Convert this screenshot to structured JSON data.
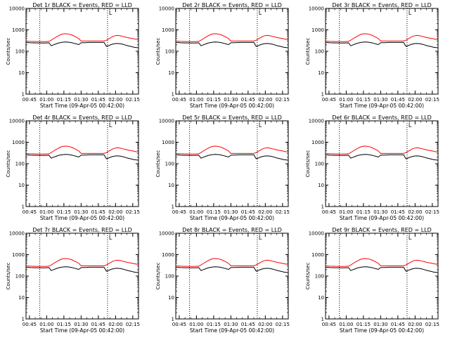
{
  "chart_data": [
    {
      "type": "line",
      "title": "Det 1r BLACK = Events, RED = LLD",
      "ylabel": "Counts/sec",
      "xlabel": "Start Time (09-Apr-05 00:42:00)",
      "x_ticks": [
        "00:45",
        "01:00",
        "01:15",
        "01:30",
        "01:45",
        "02:00",
        "02:15"
      ],
      "y_ticks": [
        "1",
        "10",
        "100",
        "1000",
        "10000"
      ],
      "yscale": "log",
      "ylim": [
        1,
        10000
      ],
      "xlim_minutes": [
        42,
        140
      ],
      "marker_label": "L",
      "series": [
        {
          "name": "Events",
          "color": "#000000"
        },
        {
          "name": "LLD",
          "color": "#ff0000"
        }
      ]
    },
    {
      "type": "line",
      "title": "Det 2r BLACK = Events, RED = LLD",
      "ylabel": "Counts/sec",
      "xlabel": "Start Time (09-Apr-05 00:42:00)",
      "x_ticks": [
        "00:45",
        "01:00",
        "01:15",
        "01:30",
        "01:45",
        "02:00",
        "02:15"
      ],
      "y_ticks": [
        "1",
        "10",
        "100",
        "1000",
        "10000"
      ],
      "yscale": "log",
      "ylim": [
        1,
        10000
      ],
      "xlim_minutes": [
        42,
        140
      ],
      "marker_label": "L",
      "series": [
        {
          "name": "Events",
          "color": "#000000"
        },
        {
          "name": "LLD",
          "color": "#ff0000"
        }
      ]
    },
    {
      "type": "line",
      "title": "Det 3r BLACK = Events, RED = LLD",
      "ylabel": "Counts/sec",
      "xlabel": "Start Time (09-Apr-05 00:42:00)",
      "x_ticks": [
        "00:45",
        "01:00",
        "01:15",
        "01:30",
        "01:45",
        "02:00",
        "02:15"
      ],
      "y_ticks": [
        "1",
        "10",
        "100",
        "1000",
        "10000"
      ],
      "yscale": "log",
      "ylim": [
        1,
        10000
      ],
      "xlim_minutes": [
        42,
        140
      ],
      "marker_label": "L",
      "series": [
        {
          "name": "Events",
          "color": "#000000"
        },
        {
          "name": "LLD",
          "color": "#ff0000"
        }
      ]
    },
    {
      "type": "line",
      "title": "Det 4r BLACK = Events, RED = LLD",
      "ylabel": "Counts/sec",
      "xlabel": "Start Time (09-Apr-05 00:42:00)",
      "x_ticks": [
        "00:45",
        "01:00",
        "01:15",
        "01:30",
        "01:45",
        "02:00",
        "02:15"
      ],
      "y_ticks": [
        "1",
        "10",
        "100",
        "1000",
        "10000"
      ],
      "yscale": "log",
      "ylim": [
        1,
        10000
      ],
      "xlim_minutes": [
        42,
        140
      ],
      "marker_label": "L",
      "series": [
        {
          "name": "Events",
          "color": "#000000"
        },
        {
          "name": "LLD",
          "color": "#ff0000"
        }
      ]
    },
    {
      "type": "line",
      "title": "Det 5r BLACK = Events, RED = LLD",
      "ylabel": "Counts/sec",
      "xlabel": "Start Time (09-Apr-05 00:42:00)",
      "x_ticks": [
        "00:45",
        "01:00",
        "01:15",
        "01:30",
        "01:45",
        "02:00",
        "02:15"
      ],
      "y_ticks": [
        "1",
        "10",
        "100",
        "1000",
        "10000"
      ],
      "yscale": "log",
      "ylim": [
        1,
        10000
      ],
      "xlim_minutes": [
        42,
        140
      ],
      "marker_label": "L",
      "series": [
        {
          "name": "Events",
          "color": "#000000"
        },
        {
          "name": "LLD",
          "color": "#ff0000"
        }
      ]
    },
    {
      "type": "line",
      "title": "Det 6r BLACK = Events, RED = LLD",
      "ylabel": "Counts/sec",
      "xlabel": "Start Time (09-Apr-05 00:42:00)",
      "x_ticks": [
        "00:45",
        "01:00",
        "01:15",
        "01:30",
        "01:45",
        "02:00",
        "02:15"
      ],
      "y_ticks": [
        "1",
        "10",
        "100",
        "1000",
        "10000"
      ],
      "yscale": "log",
      "ylim": [
        1,
        10000
      ],
      "xlim_minutes": [
        42,
        140
      ],
      "marker_label": "L",
      "series": [
        {
          "name": "Events",
          "color": "#000000"
        },
        {
          "name": "LLD",
          "color": "#ff0000"
        }
      ]
    },
    {
      "type": "line",
      "title": "Det 7r BLACK = Events, RED = LLD",
      "ylabel": "Counts/sec",
      "xlabel": "Start Time (09-Apr-05 00:42:00)",
      "x_ticks": [
        "00:45",
        "01:00",
        "01:15",
        "01:30",
        "01:45",
        "02:00",
        "02:15"
      ],
      "y_ticks": [
        "1",
        "10",
        "100",
        "1000",
        "10000"
      ],
      "yscale": "log",
      "ylim": [
        1,
        10000
      ],
      "xlim_minutes": [
        42,
        140
      ],
      "marker_label": "L",
      "series": [
        {
          "name": "Events",
          "color": "#000000"
        },
        {
          "name": "LLD",
          "color": "#ff0000"
        }
      ]
    },
    {
      "type": "line",
      "title": "Det 8r BLACK = Events, RED = LLD",
      "ylabel": "Counts/sec",
      "xlabel": "Start Time (09-Apr-05 00:42:00)",
      "x_ticks": [
        "00:45",
        "01:00",
        "01:15",
        "01:30",
        "01:45",
        "02:00",
        "02:15"
      ],
      "y_ticks": [
        "1",
        "10",
        "100",
        "1000",
        "10000"
      ],
      "yscale": "log",
      "ylim": [
        1,
        10000
      ],
      "xlim_minutes": [
        42,
        140
      ],
      "marker_label": "L",
      "series": [
        {
          "name": "Events",
          "color": "#000000"
        },
        {
          "name": "LLD",
          "color": "#ff0000"
        }
      ]
    },
    {
      "type": "line",
      "title": "Det 9r BLACK = Events, RED = LLD",
      "ylabel": "Counts/sec",
      "xlabel": "Start Time (09-Apr-05 00:42:00)",
      "x_ticks": [
        "00:45",
        "01:00",
        "01:15",
        "01:30",
        "01:45",
        "02:00",
        "02:15"
      ],
      "y_ticks": [
        "1",
        "10",
        "100",
        "1000",
        "10000"
      ],
      "yscale": "log",
      "ylim": [
        1,
        10000
      ],
      "xlim_minutes": [
        42,
        140
      ],
      "marker_label": "L",
      "series": [
        {
          "name": "Events",
          "color": "#000000"
        },
        {
          "name": "LLD",
          "color": "#ff0000"
        }
      ]
    }
  ],
  "profile": {
    "minutes": [
      42,
      44,
      46,
      48,
      50,
      52,
      54,
      56,
      58,
      60,
      62,
      64,
      66,
      68,
      70,
      72,
      74,
      76,
      78,
      80,
      82,
      84,
      86,
      88,
      90,
      92,
      94,
      96,
      98,
      100,
      102,
      104,
      106,
      108,
      110,
      112,
      114,
      116,
      118,
      120,
      122,
      124,
      126,
      128,
      130,
      132,
      134,
      136,
      138,
      140
    ],
    "events": [
      260,
      255,
      250,
      248,
      246,
      245,
      244,
      243,
      242,
      245,
      248,
      180,
      200,
      220,
      240,
      255,
      265,
      270,
      268,
      260,
      250,
      235,
      220,
      205,
      250,
      252,
      254,
      256,
      258,
      258,
      258,
      258,
      258,
      258,
      258,
      170,
      185,
      205,
      220,
      230,
      232,
      225,
      215,
      200,
      185,
      175,
      165,
      155,
      150,
      145
    ],
    "lld": [
      300,
      295,
      290,
      288,
      286,
      285,
      284,
      283,
      282,
      285,
      290,
      330,
      390,
      450,
      520,
      590,
      640,
      660,
      650,
      620,
      570,
      510,
      450,
      390,
      300,
      300,
      300,
      300,
      300,
      300,
      300,
      300,
      300,
      300,
      300,
      330,
      380,
      440,
      500,
      540,
      550,
      530,
      500,
      470,
      440,
      420,
      400,
      380,
      360,
      350
    ]
  },
  "markers": {
    "dotted_minutes": [
      54,
      113
    ],
    "L_minute": 113
  }
}
